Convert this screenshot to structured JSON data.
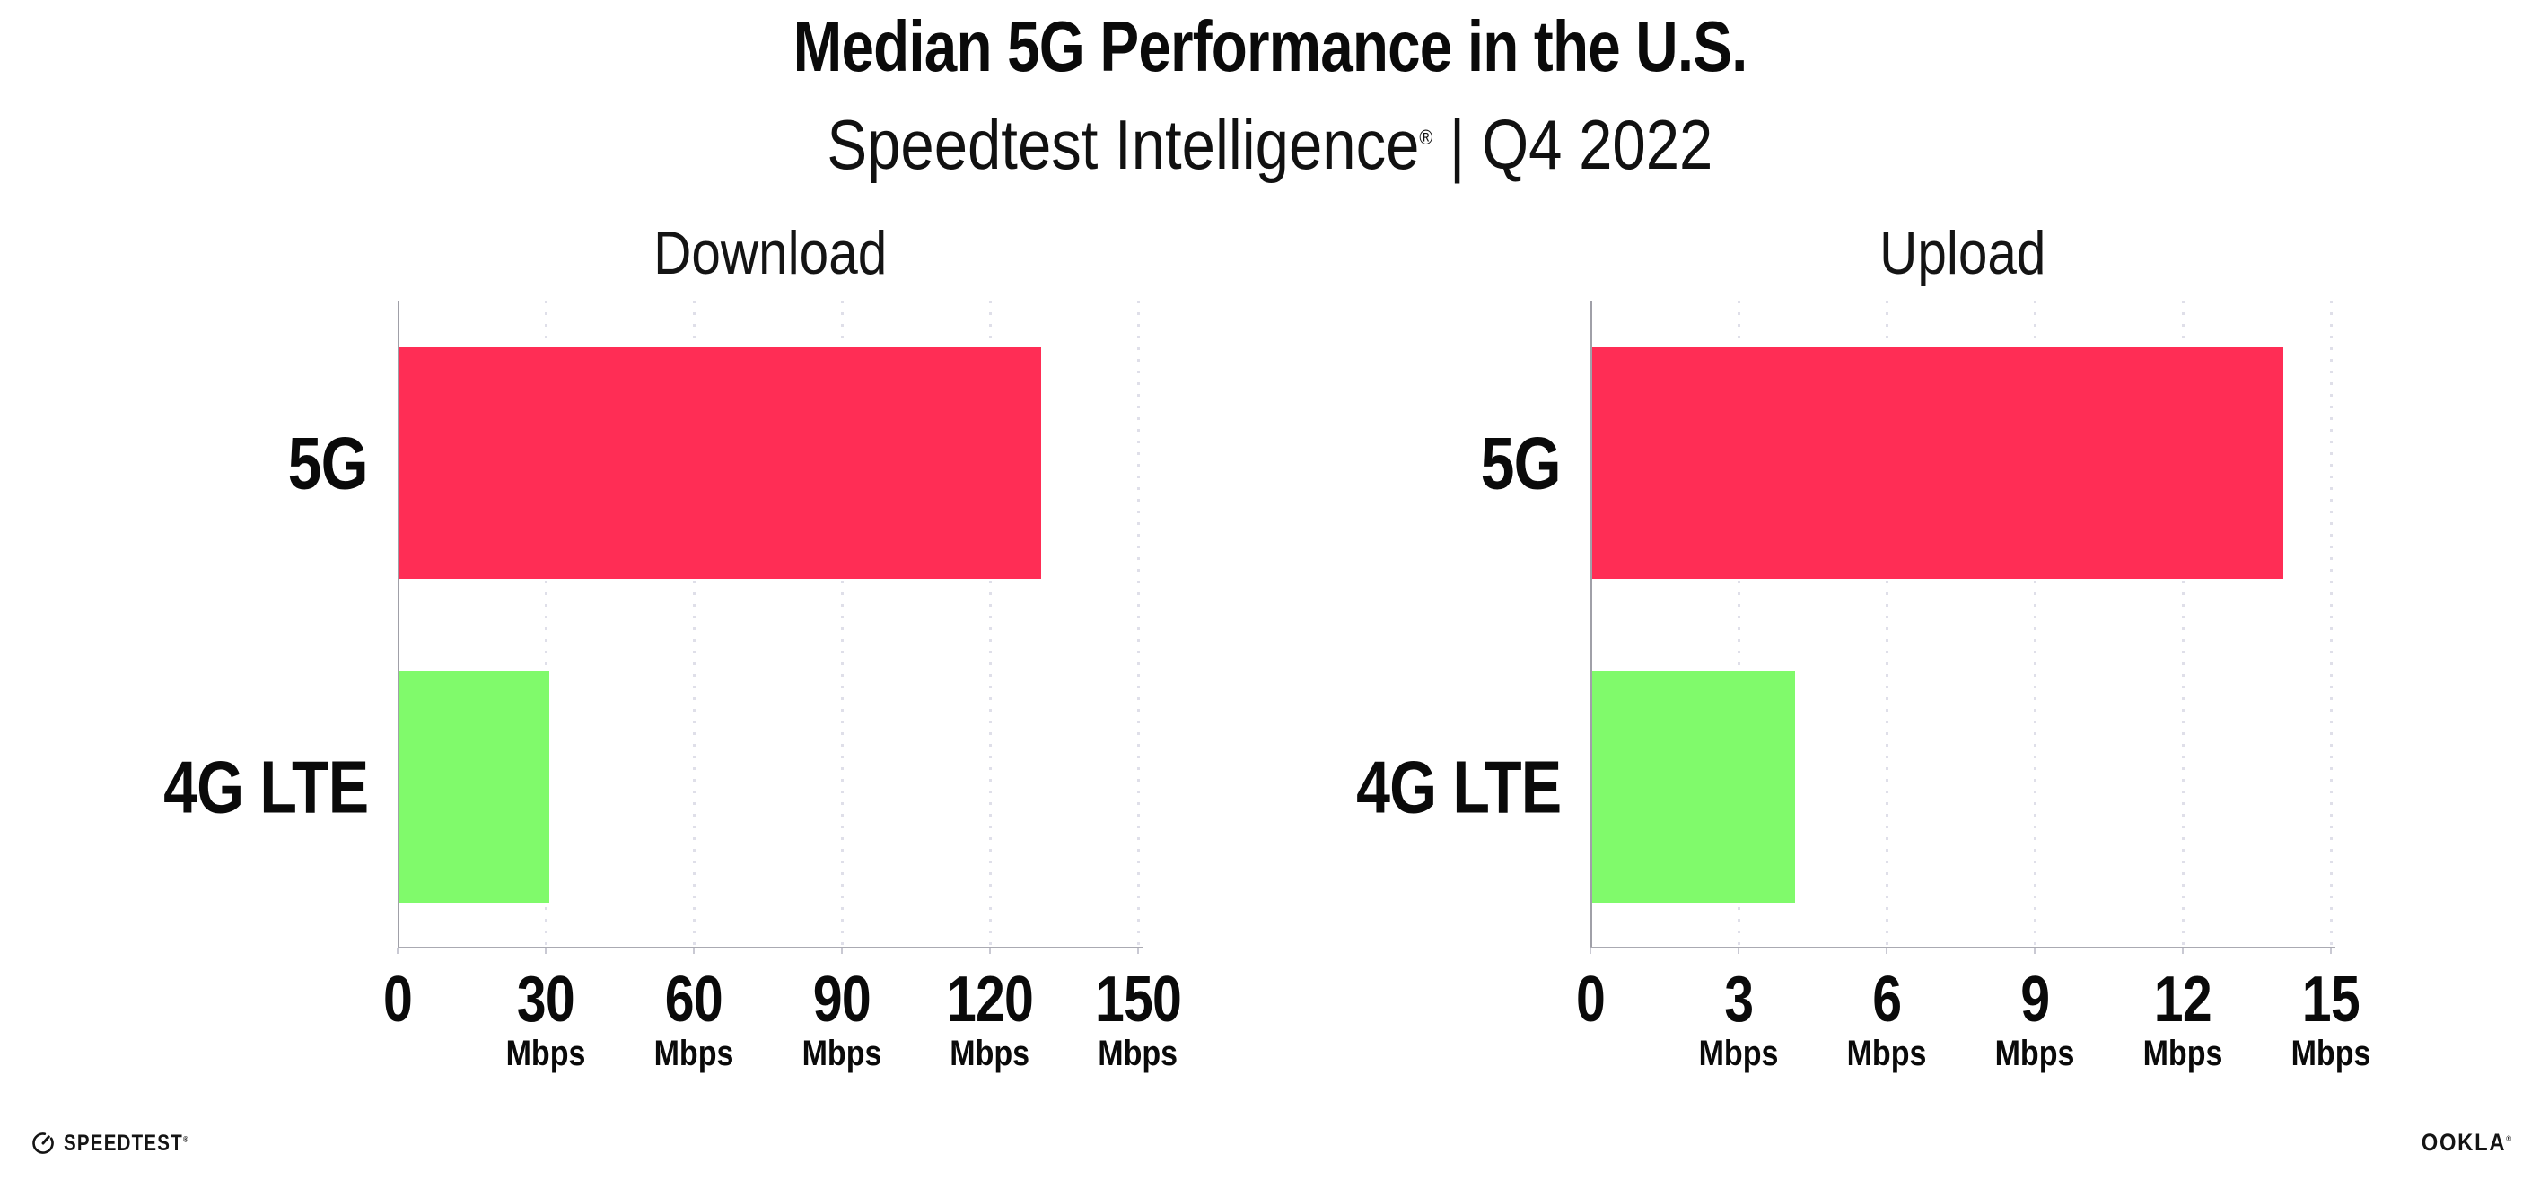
{
  "header": {
    "title": "Median 5G Performance in the U.S.",
    "subtitle_brand": "Speedtest Intelligence",
    "subtitle_reg": "®",
    "subtitle_rest": " | Q4 2022"
  },
  "chart_data": [
    {
      "type": "bar",
      "orientation": "horizontal",
      "title": "Download",
      "categories": [
        "5G",
        "4G LTE"
      ],
      "values": [
        130,
        30.3
      ],
      "unit": "Mbps",
      "xlim": [
        0,
        150
      ],
      "xticks": [
        0,
        30,
        60,
        90,
        120,
        150
      ],
      "tick_unit_label": "Mbps",
      "bar_colors": [
        "#FF2D55",
        "#80FA6B"
      ],
      "grid": "dotted-vertical",
      "legend": "none"
    },
    {
      "type": "bar",
      "orientation": "horizontal",
      "title": "Upload",
      "categories": [
        "5G",
        "4G LTE"
      ],
      "values": [
        14,
        4.1
      ],
      "unit": "Mbps",
      "xlim": [
        0,
        15
      ],
      "xticks": [
        0,
        3,
        6,
        9,
        12,
        15
      ],
      "tick_unit_label": "Mbps",
      "bar_colors": [
        "#FF2D55",
        "#80FA6B"
      ],
      "grid": "dotted-vertical",
      "legend": "none"
    }
  ],
  "colors": {
    "bar_5g": "#FF2D55",
    "bar_4g_lte": "#80FA6B",
    "axis_line": "#a0a0a8",
    "gridline": "#dfdfe9",
    "text": "#0a0a0a"
  },
  "footer": {
    "speedtest_label": "SPEEDTEST",
    "speedtest_reg": "®",
    "ookla_label": "OOKLA",
    "ookla_reg": "®"
  }
}
